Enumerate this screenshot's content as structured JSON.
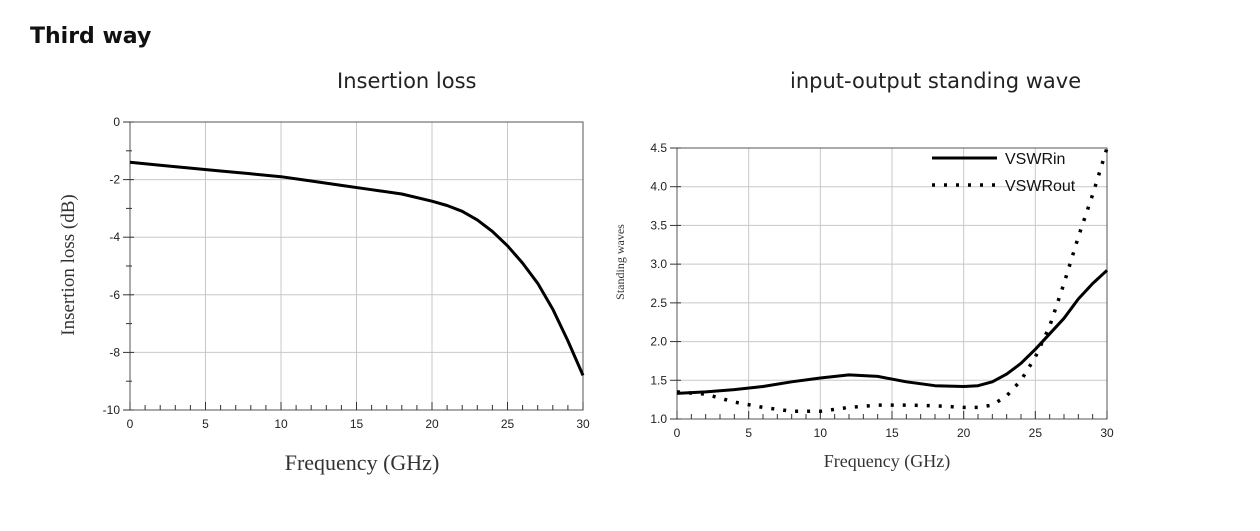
{
  "heading": "Third way",
  "chart_data": [
    {
      "type": "line",
      "title": "Insertion loss",
      "xlabel": "Frequency (GHz)",
      "ylabel": "Insertion loss (dB)",
      "xlim": [
        0,
        30
      ],
      "ylim": [
        -10,
        0
      ],
      "x_ticks": [
        0,
        5,
        10,
        15,
        20,
        25,
        30
      ],
      "y_ticks": [
        0,
        -2,
        -4,
        -6,
        -8,
        -10
      ],
      "grid": true,
      "series": [
        {
          "color": "#000000",
          "x": [
            0,
            2,
            4,
            6,
            8,
            10,
            12,
            14,
            16,
            18,
            20,
            21,
            22,
            23,
            24,
            25,
            26,
            27,
            28,
            29,
            30
          ],
          "y": [
            -1.4,
            -1.5,
            -1.6,
            -1.7,
            -1.8,
            -1.9,
            -2.05,
            -2.2,
            -2.35,
            -2.5,
            -2.75,
            -2.9,
            -3.1,
            -3.4,
            -3.8,
            -4.3,
            -4.9,
            -5.6,
            -6.5,
            -7.6,
            -8.8
          ]
        }
      ]
    },
    {
      "type": "line",
      "title": "input-output standing wave",
      "xlabel": "Frequency (GHz)",
      "ylabel": "Standing waves",
      "xlim": [
        0,
        30
      ],
      "ylim": [
        1.0,
        4.5
      ],
      "x_ticks": [
        0,
        5,
        10,
        15,
        20,
        25,
        30
      ],
      "y_ticks": [
        1.0,
        1.5,
        2.0,
        2.5,
        3.0,
        3.5,
        4.0,
        4.5
      ],
      "grid": true,
      "legend": "top-right",
      "series": [
        {
          "name": "VSWRin",
          "style": "solid",
          "color": "#000000",
          "x": [
            0,
            2,
            4,
            6,
            8,
            10,
            12,
            14,
            16,
            18,
            20,
            21,
            22,
            23,
            24,
            25,
            26,
            27,
            28,
            29,
            30
          ],
          "y": [
            1.33,
            1.35,
            1.38,
            1.42,
            1.48,
            1.53,
            1.57,
            1.55,
            1.48,
            1.43,
            1.42,
            1.43,
            1.48,
            1.58,
            1.72,
            1.9,
            2.1,
            2.3,
            2.55,
            2.75,
            2.92
          ]
        },
        {
          "name": "VSWRout",
          "style": "dotted",
          "color": "#000000",
          "x": [
            0,
            2,
            4,
            6,
            8,
            10,
            12,
            14,
            16,
            18,
            20,
            21,
            22,
            23,
            24,
            25,
            26,
            27,
            28,
            29,
            30
          ],
          "y": [
            1.35,
            1.32,
            1.22,
            1.15,
            1.1,
            1.1,
            1.15,
            1.18,
            1.18,
            1.17,
            1.15,
            1.15,
            1.18,
            1.3,
            1.5,
            1.8,
            2.2,
            2.75,
            3.35,
            3.9,
            4.5
          ]
        }
      ]
    }
  ]
}
